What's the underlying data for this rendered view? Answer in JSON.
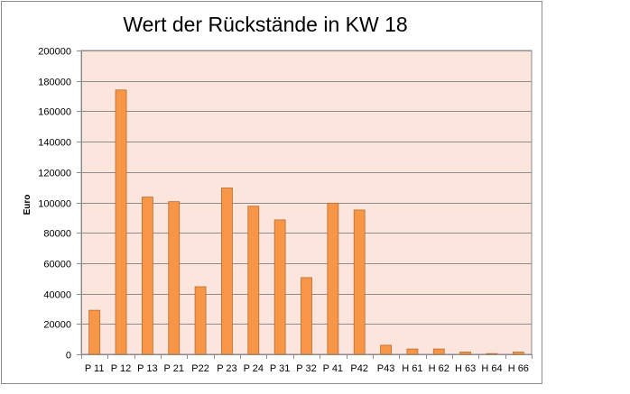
{
  "chart_data": {
    "type": "bar",
    "title": "Wert der Rückstände in KW 18",
    "xlabel": "",
    "ylabel": "Euro",
    "ylim": [
      0,
      200000
    ],
    "yticks": [
      0,
      20000,
      40000,
      60000,
      80000,
      100000,
      120000,
      140000,
      160000,
      180000,
      200000
    ],
    "grid": true,
    "legend": "none",
    "categories": [
      "P 11",
      "P 12",
      "P 13",
      "P 21",
      "P22",
      "P 23",
      "P 24",
      "P 31",
      "P 32",
      "P 41",
      "P42",
      "P43",
      "H 61",
      "H 62",
      "H 63",
      "H 64",
      "H 66"
    ],
    "values": [
      29000,
      174000,
      103500,
      100500,
      44500,
      109500,
      97500,
      88500,
      50500,
      99500,
      95000,
      6000,
      3500,
      3500,
      1500,
      500,
      1500
    ],
    "colors": {
      "bar_fill": "#f79646",
      "bar_stroke": "#b66d31",
      "plot_background": "#fce5dc",
      "gridline": "#8c8c8c",
      "frame": "#8c8c8c"
    }
  }
}
